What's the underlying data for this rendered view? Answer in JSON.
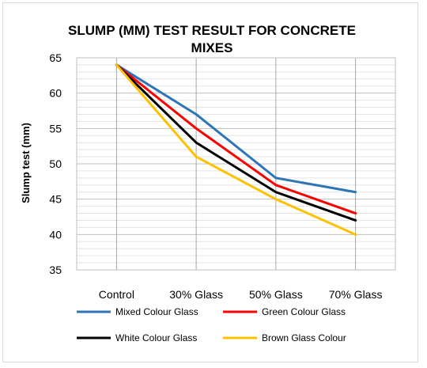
{
  "chart_data": {
    "type": "line",
    "title_lines": [
      "SLUMP (MM) TEST RESULT FOR CONCRETE",
      "MIXES"
    ],
    "xlabel": "",
    "ylabel": "Slump test (mm)",
    "categories": [
      "Control",
      "30% Glass",
      "50% Glass",
      "70% Glass"
    ],
    "ylim": [
      35,
      65
    ],
    "yticks": [
      35,
      40,
      45,
      50,
      55,
      60,
      65
    ],
    "grid": true,
    "legend_position": "bottom",
    "series": [
      {
        "name": "Mixed Colour Glass",
        "color": "#2e75b6",
        "values": [
          64,
          57,
          48,
          46
        ]
      },
      {
        "name": "Green Colour  Glass",
        "color": "#ff0000",
        "values": [
          64,
          55,
          47,
          43
        ]
      },
      {
        "name": "White Colour Glass",
        "color": "#000000",
        "values": [
          64,
          53,
          46,
          42
        ]
      },
      {
        "name": "Brown Glass Colour",
        "color": "#ffc000",
        "values": [
          64,
          51,
          45,
          40
        ]
      }
    ]
  }
}
